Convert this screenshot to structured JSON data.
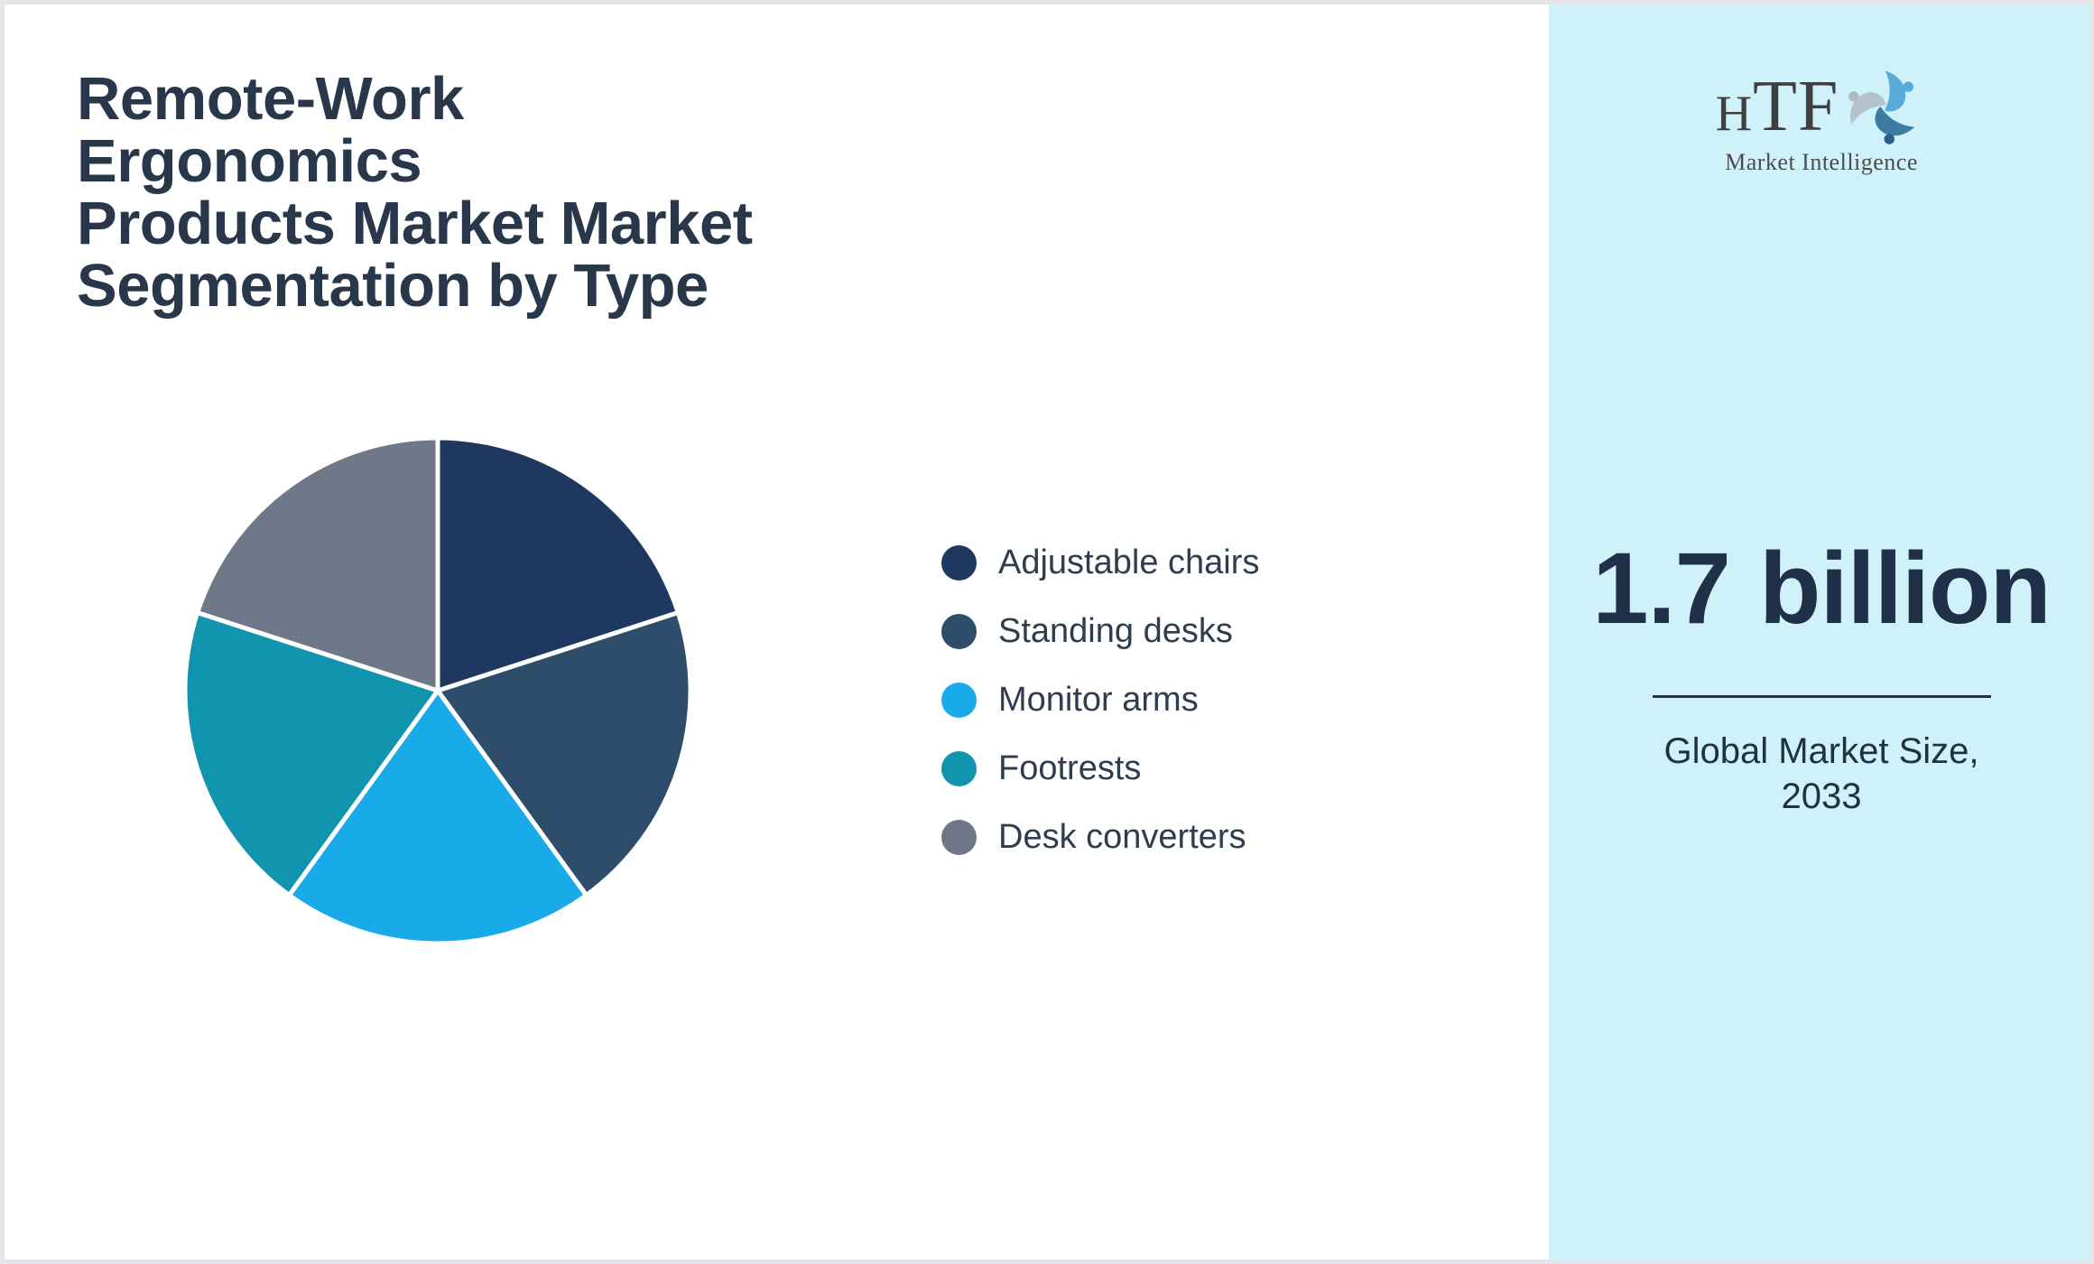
{
  "title": "Remote-Work Ergonomics\nProducts Market Market\nSegmentation by Type",
  "chart_data": {
    "type": "pie",
    "title": "Remote-Work Ergonomics Products Market Market Segmentation by Type",
    "categories": [
      "Adjustable chairs",
      "Standing desks",
      "Monitor arms",
      "Footrests",
      "Desk converters"
    ],
    "values": [
      20,
      20,
      20,
      20,
      20
    ],
    "unit": "percent (approx., equal slices, no data labels shown)",
    "colors": [
      "#1e385f",
      "#2e4d6b",
      "#19aae9",
      "#1194ad",
      "#6f7888"
    ],
    "start_angle_deg": 0,
    "direction": "clockwise",
    "slice_gap_color": "#ffffff",
    "legend_position": "right",
    "legend_marker": "circle"
  },
  "panel": {
    "background_color": "#cff2fa",
    "logo": {
      "text": "HTF",
      "subtext": "Market Intelligence",
      "icon": "dolphin-swirl-icon",
      "icon_colors": [
        "#58abd7",
        "#3c7ca3",
        "#b5c2cc"
      ],
      "icon_dot_colors": [
        "#58abd7",
        "#2a5d8c",
        "#aebbc6"
      ]
    },
    "market_size": {
      "value": "1.7 billion",
      "caption": "Global Market Size,\n2033"
    }
  },
  "colors": {
    "title_text": "#28374a",
    "legend_text": "#2f3d4f",
    "value_text": "#1f3048",
    "page_background": "#ffffff",
    "page_border": "#e4e5e9"
  }
}
